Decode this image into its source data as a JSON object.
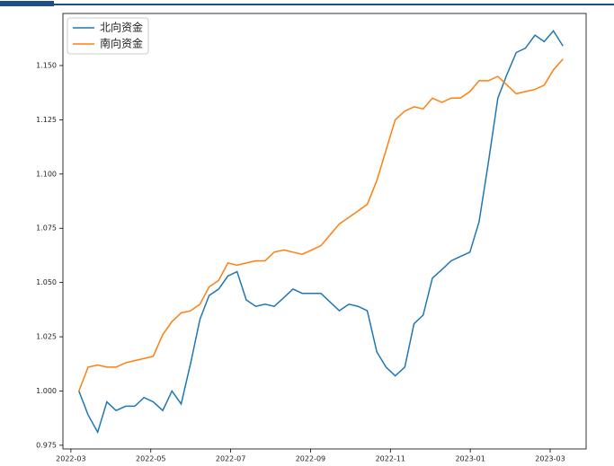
{
  "chart_data": {
    "type": "line",
    "x": [
      0.2,
      0.43,
      0.67,
      0.9,
      1.13,
      1.37,
      1.6,
      1.83,
      2.06,
      2.3,
      2.53,
      2.76,
      3.0,
      3.23,
      3.46,
      3.7,
      3.93,
      4.16,
      4.39,
      4.63,
      4.86,
      5.09,
      5.33,
      5.56,
      5.79,
      6.03,
      6.26,
      6.49,
      6.72,
      6.96,
      7.19,
      7.42,
      7.66,
      7.89,
      8.12,
      8.36,
      8.59,
      8.82,
      9.05,
      9.29,
      9.52,
      9.75,
      9.99,
      10.22,
      10.45,
      10.69,
      10.92,
      11.15,
      11.38,
      11.62,
      11.85,
      12.08,
      12.32
    ],
    "series": [
      {
        "name": "北向资金",
        "color": "#1f77b4",
        "values": [
          1.0,
          0.989,
          0.981,
          0.995,
          0.991,
          0.993,
          0.993,
          0.997,
          0.995,
          0.991,
          1.0,
          0.994,
          1.013,
          1.033,
          1.044,
          1.047,
          1.053,
          1.055,
          1.042,
          1.039,
          1.04,
          1.039,
          1.043,
          1.047,
          1.045,
          1.045,
          1.045,
          1.041,
          1.037,
          1.04,
          1.039,
          1.037,
          1.018,
          1.011,
          1.007,
          1.011,
          1.031,
          1.035,
          1.052,
          1.056,
          1.06,
          1.062,
          1.064,
          1.078,
          1.105,
          1.135,
          1.146,
          1.156,
          1.158,
          1.164,
          1.161,
          1.166,
          1.159
        ]
      },
      {
        "name": "南向资金",
        "color": "#ff7f0e",
        "values": [
          1.0,
          1.011,
          1.012,
          1.011,
          1.011,
          1.013,
          1.014,
          1.015,
          1.016,
          1.026,
          1.032,
          1.036,
          1.037,
          1.04,
          1.048,
          1.051,
          1.059,
          1.058,
          1.059,
          1.06,
          1.06,
          1.064,
          1.065,
          1.064,
          1.063,
          1.065,
          1.067,
          1.072,
          1.077,
          1.08,
          1.083,
          1.086,
          1.097,
          1.111,
          1.125,
          1.129,
          1.131,
          1.13,
          1.135,
          1.133,
          1.135,
          1.135,
          1.138,
          1.143,
          1.143,
          1.145,
          1.141,
          1.137,
          1.138,
          1.139,
          1.141,
          1.148,
          1.153
        ]
      }
    ],
    "xlim": [
      -0.2,
      12.9
    ],
    "xticks": [
      {
        "value": 0,
        "label": "2022-03"
      },
      {
        "value": 2,
        "label": "2022-05"
      },
      {
        "value": 4,
        "label": "2022-07"
      },
      {
        "value": 6,
        "label": "2022-09"
      },
      {
        "value": 8,
        "label": "2022-11"
      },
      {
        "value": 10,
        "label": "2023-01"
      },
      {
        "value": 12,
        "label": "2023-03"
      }
    ],
    "ylim": [
      0.9733,
      1.174
    ],
    "yticks": [
      0.975,
      {
        "value": 1,
        "label": "1.000"
      },
      1.025,
      {
        "value": 1.05,
        "label": "1.050"
      },
      1.075,
      {
        "value": 1.1,
        "label": "1.100"
      },
      1.125,
      {
        "value": 1.15,
        "label": "1.150"
      }
    ],
    "legend": "upper left"
  }
}
